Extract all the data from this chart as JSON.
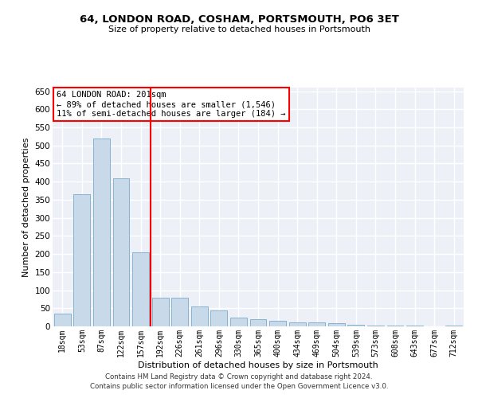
{
  "title": "64, LONDON ROAD, COSHAM, PORTSMOUTH, PO6 3ET",
  "subtitle": "Size of property relative to detached houses in Portsmouth",
  "xlabel": "Distribution of detached houses by size in Portsmouth",
  "ylabel": "Number of detached properties",
  "categories": [
    "18sqm",
    "53sqm",
    "87sqm",
    "122sqm",
    "157sqm",
    "192sqm",
    "226sqm",
    "261sqm",
    "296sqm",
    "330sqm",
    "365sqm",
    "400sqm",
    "434sqm",
    "469sqm",
    "504sqm",
    "539sqm",
    "573sqm",
    "608sqm",
    "643sqm",
    "677sqm",
    "712sqm"
  ],
  "values": [
    35,
    365,
    520,
    410,
    205,
    80,
    80,
    55,
    45,
    25,
    20,
    15,
    10,
    10,
    8,
    5,
    2,
    3,
    2,
    1,
    3
  ],
  "bar_color": "#c8d9ea",
  "bar_edge_color": "#7baacb",
  "bg_color": "#edf1f7",
  "grid_color": "#d0d8e8",
  "annotation_box_text_line1": "64 LONDON ROAD: 201sqm",
  "annotation_box_text_line2": "← 89% of detached houses are smaller (1,546)",
  "annotation_box_text_line3": "11% of semi-detached houses are larger (184) →",
  "red_line_x": 4.5,
  "ylim": [
    0,
    660
  ],
  "yticks": [
    0,
    50,
    100,
    150,
    200,
    250,
    300,
    350,
    400,
    450,
    500,
    550,
    600,
    650
  ],
  "footer_line1": "Contains HM Land Registry data © Crown copyright and database right 2024.",
  "footer_line2": "Contains public sector information licensed under the Open Government Licence v3.0."
}
